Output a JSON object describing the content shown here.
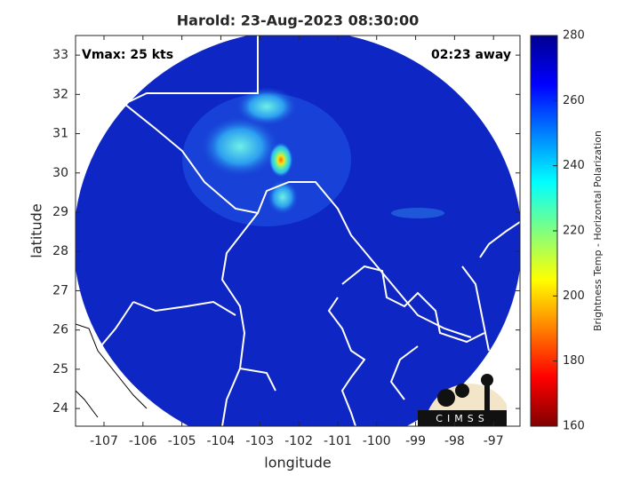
{
  "chart_data": {
    "type": "map",
    "title": "Harold: 23-Aug-2023 08:30:00",
    "annotations": [
      "Vmax: 25 kts",
      "02:23 away"
    ],
    "x_label": "longitude",
    "y_label": "latitude",
    "xlim": [
      -107.73,
      -96.32
    ],
    "xticks": [
      -107,
      -106,
      -105,
      -104,
      -103,
      -102,
      -101,
      -100,
      -99,
      -98,
      -97
    ],
    "ylim": [
      23.55,
      33.5
    ],
    "yticks": [
      24,
      25,
      26,
      27,
      28,
      29,
      30,
      31,
      32,
      33
    ],
    "colorbar": {
      "label": "Brightness Temp - Horizontal Polarization",
      "lim": [
        160,
        280
      ],
      "ticks": [
        160,
        180,
        200,
        220,
        240,
        260,
        280
      ],
      "colormap": "jet"
    },
    "logo": "CIMSS"
  }
}
